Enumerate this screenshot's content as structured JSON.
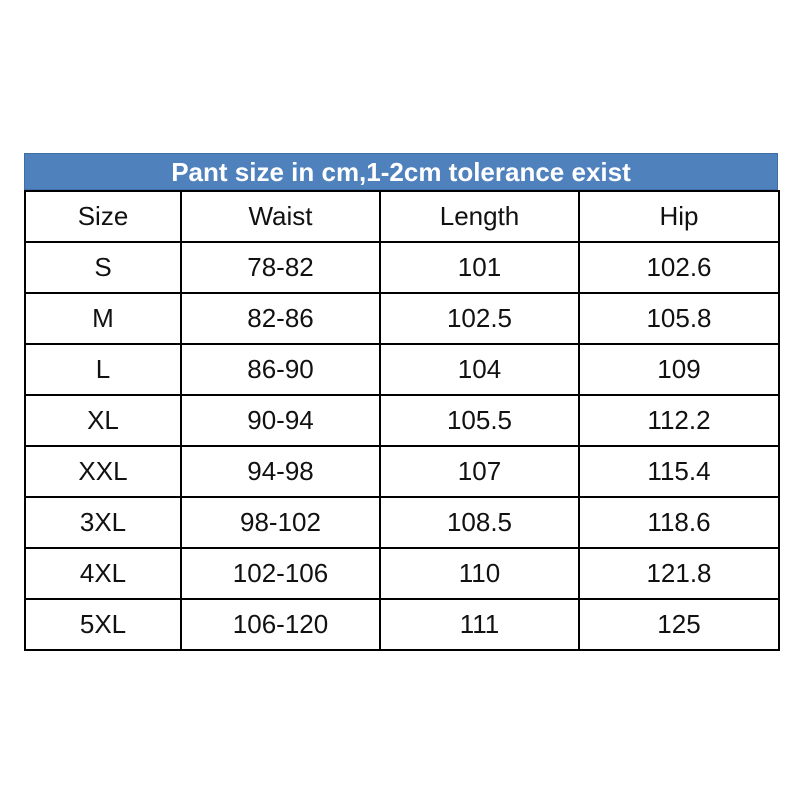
{
  "table": {
    "title": "Pant size in cm,1-2cm tolerance exist",
    "header": [
      "Size",
      "Waist",
      "Length",
      "Hip"
    ],
    "rows": [
      [
        "S",
        "78-82",
        "101",
        "102.6"
      ],
      [
        "M",
        "82-86",
        "102.5",
        "105.8"
      ],
      [
        "L",
        "86-90",
        "104",
        "109"
      ],
      [
        "XL",
        "90-94",
        "105.5",
        "112.2"
      ],
      [
        "XXL",
        "94-98",
        "107",
        "115.4"
      ],
      [
        "3XL",
        "98-102",
        "108.5",
        "118.6"
      ],
      [
        "4XL",
        "102-106",
        "110",
        "121.8"
      ],
      [
        "5XL",
        "106-120",
        "111",
        "125"
      ]
    ]
  }
}
